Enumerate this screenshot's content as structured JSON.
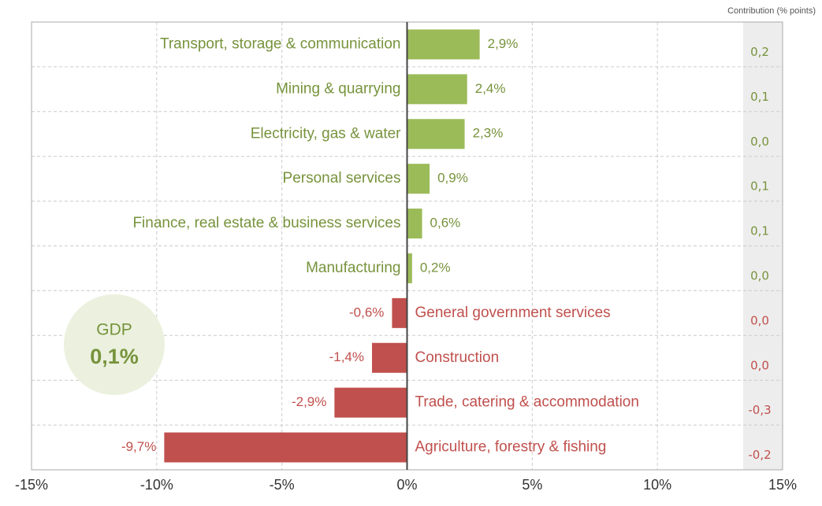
{
  "chart_data": {
    "type": "bar",
    "orientation": "horizontal",
    "categories": [
      "Transport, storage & communication",
      "Mining & quarrying",
      "Electricity, gas & water",
      "Personal services",
      "Finance, real estate & business services",
      "Manufacturing",
      "General government services",
      "Construction",
      "Trade, catering & accommodation",
      "Agriculture, forestry & fishing"
    ],
    "values": [
      2.9,
      2.4,
      2.3,
      0.9,
      0.6,
      0.2,
      -0.6,
      -1.4,
      -2.9,
      -9.7
    ],
    "value_labels": [
      "2,9%",
      "2,4%",
      "2,3%",
      "0,9%",
      "0,6%",
      "0,2%",
      "-0,6%",
      "-1,4%",
      "-2,9%",
      "-9,7%"
    ],
    "positive_color": "#9bbb59",
    "negative_color": "#c0504d",
    "positive_text_color": "#77933c",
    "negative_text_color": "#c0504d",
    "xlim": [
      -15,
      15
    ],
    "xticks": [
      {
        "value": -15,
        "label": "-15%"
      },
      {
        "value": -10,
        "label": "-10%"
      },
      {
        "value": -5,
        "label": "-5%"
      },
      {
        "value": 0,
        "label": "0%"
      },
      {
        "value": 5,
        "label": "5%"
      },
      {
        "value": 10,
        "label": "10%"
      },
      {
        "value": 15,
        "label": "15%"
      }
    ],
    "grid": true,
    "contribution": {
      "title": "Contribution (% points)",
      "values": [
        0.2,
        0.1,
        0.0,
        0.1,
        0.1,
        0.0,
        0.0,
        0.0,
        -0.3,
        -0.2
      ],
      "value_labels": [
        "0,2",
        "0,1",
        "0,0",
        "0,1",
        "0,1",
        "0,0",
        "0,0",
        "0,0",
        "-0,3",
        "-0,2"
      ]
    },
    "gdp": {
      "label": "GDP",
      "value": 0.1,
      "value_label": "0,1%"
    }
  }
}
